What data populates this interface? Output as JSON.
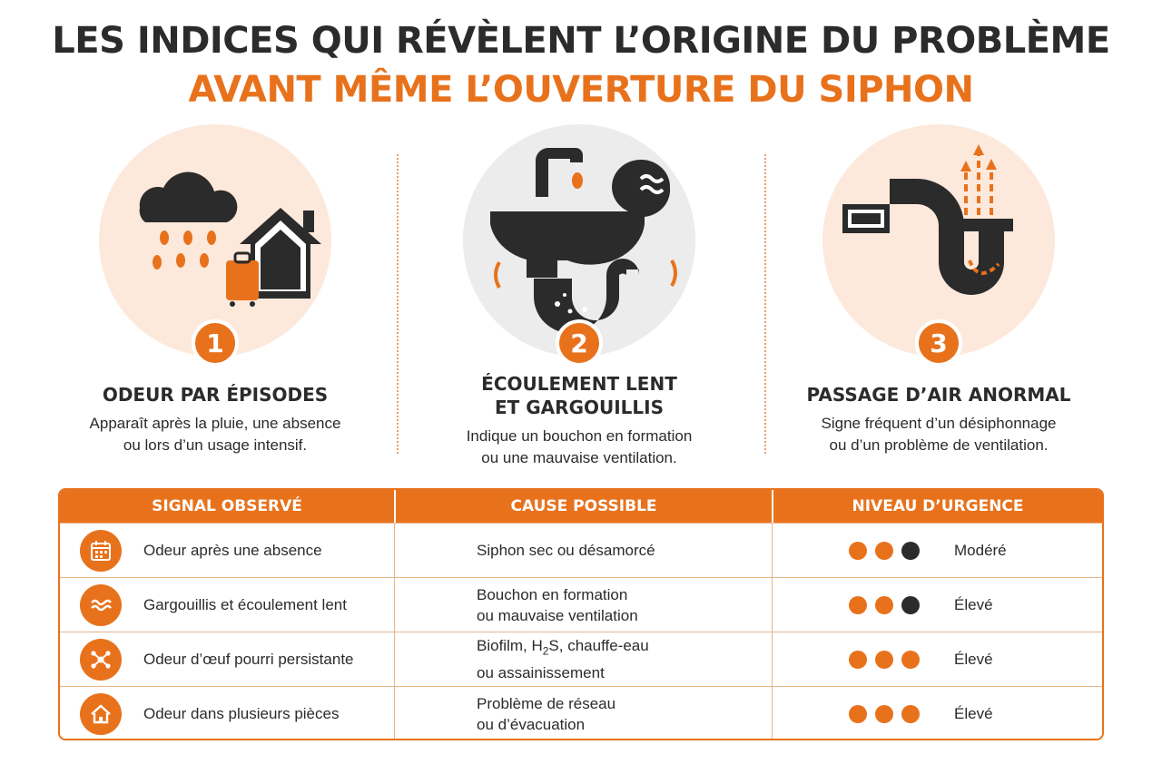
{
  "header": {
    "line1": "LES INDICES QUI RÉVÈLENT L’ORIGINE DU PROBLÈME",
    "line2": "AVANT MÊME L’OUVERTURE DU SIPHON"
  },
  "cards": [
    {
      "number": "1",
      "title": "ODEUR PAR ÉPISODES",
      "desc": [
        "Apparaît après la pluie, une absence",
        "ou lors d’un usage intensif."
      ]
    },
    {
      "number": "2",
      "title": [
        "ÉCOULEMENT LENT",
        "ET GARGOUILLIS"
      ],
      "desc": [
        "Indique un bouchon en formation",
        "ou une mauvaise ventilation."
      ]
    },
    {
      "number": "3",
      "title": "PASSAGE D’AIR ANORMAL",
      "desc": [
        "Signe fréquent d’un désiphonnage",
        "ou d’un problème de ventilation."
      ]
    }
  ],
  "table": {
    "headers": [
      "SIGNAL OBSERVÉ",
      "CAUSE POSSIBLE",
      "NIVEAU D’URGENCE"
    ],
    "rows": [
      {
        "icon": "calendar-icon",
        "signal": "Odeur après une absence",
        "cause": [
          "Siphon sec ou désamorcé"
        ],
        "dots": [
          "orange",
          "orange",
          "dark"
        ],
        "level": "Modéré"
      },
      {
        "icon": "waves-icon",
        "signal": "Gargouillis et écoulement lent",
        "cause": [
          "Bouchon en formation",
          "ou mauvaise ventilation"
        ],
        "dots": [
          "orange",
          "orange",
          "dark"
        ],
        "level": "Élevé"
      },
      {
        "icon": "molecule-icon",
        "signal": "Odeur d’œuf pourri persistante",
        "cause": [
          "Biofilm, H",
          "2",
          "S, chauffe-eau",
          "ou assainissement"
        ],
        "dots": [
          "orange",
          "orange",
          "orange"
        ],
        "level": "Élevé"
      },
      {
        "icon": "house-icon",
        "signal": "Odeur dans plusieurs pièces",
        "cause": [
          "Problème de réseau",
          "ou d’évacuation"
        ],
        "dots": [
          "orange",
          "orange",
          "orange"
        ],
        "level": "Élevé"
      }
    ]
  },
  "colors": {
    "accent": "#e8721c",
    "dark": "#2b2b2b",
    "peach": "#fde9dc",
    "grey": "#ececec"
  }
}
